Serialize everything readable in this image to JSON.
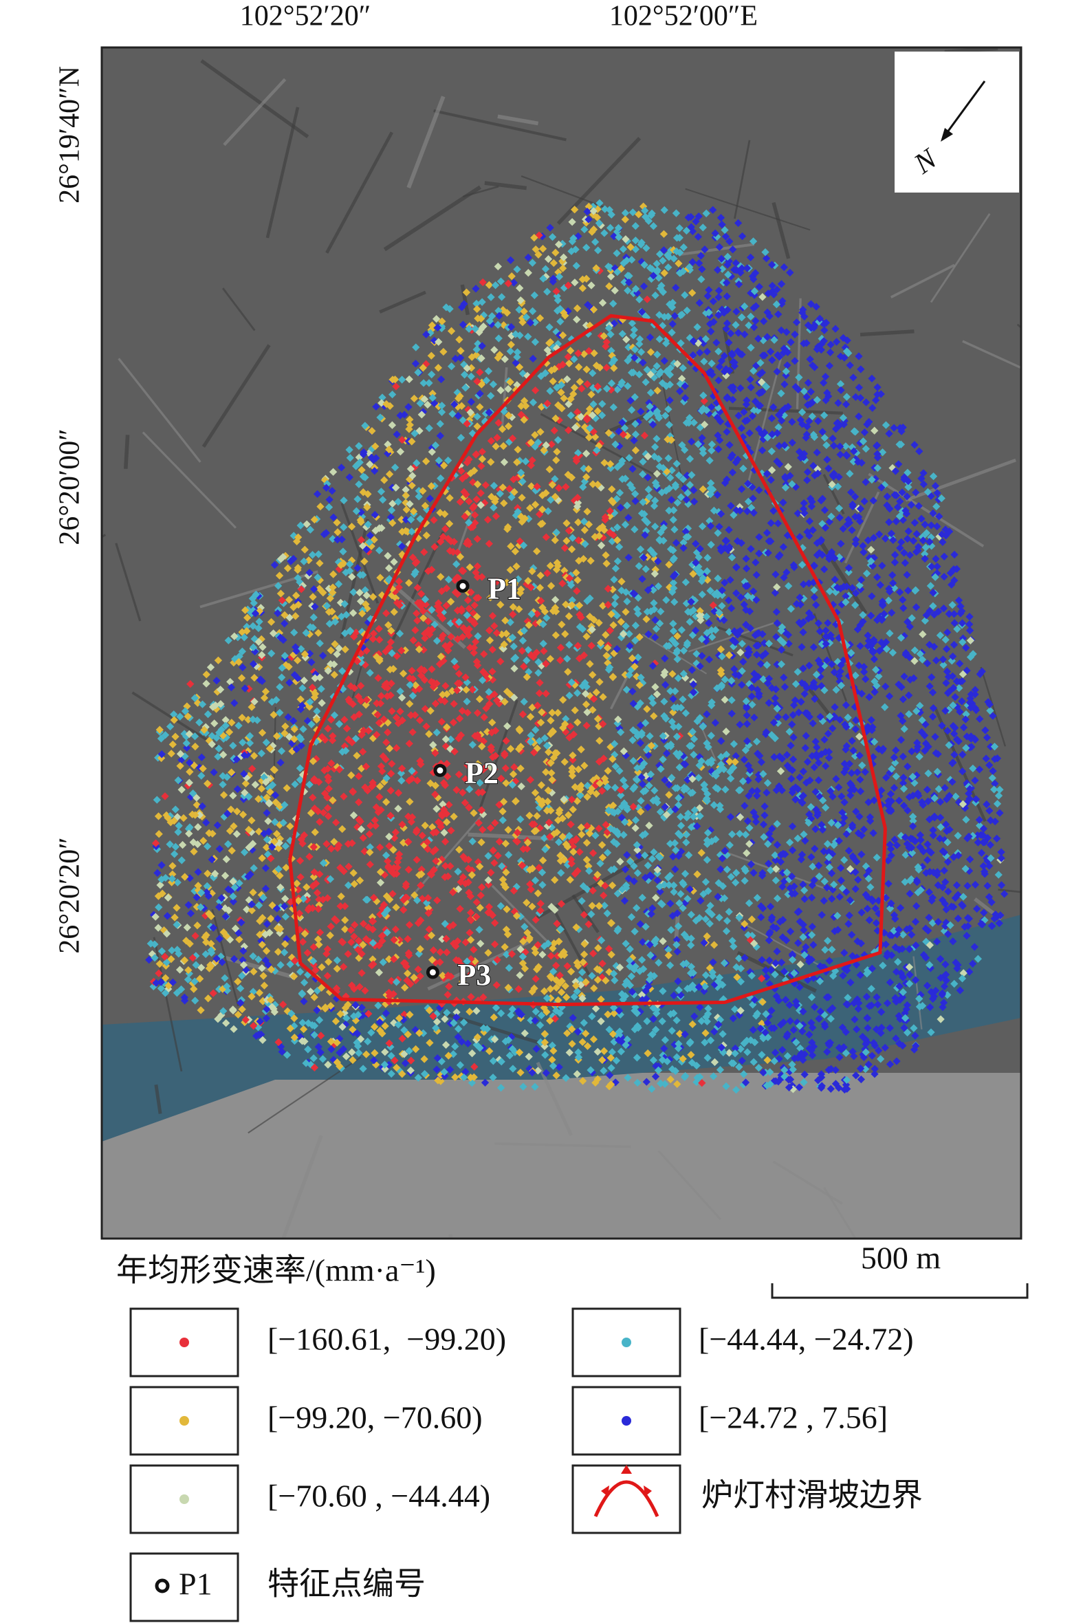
{
  "map": {
    "coordinates": {
      "top": [
        "102°52′20″",
        "102°52′00″E"
      ],
      "left": [
        "26°19′40″N",
        "26°20′00″",
        "26°20′20″"
      ]
    },
    "north": "N",
    "points": [
      "P1",
      "P2",
      "P3"
    ],
    "scale_bar": "500 m",
    "legend": {
      "title": "年均形变速率/(mm·a⁻¹)",
      "classes": [
        {
          "label": "[−160.61,  −99.20)",
          "color": "#e8303a"
        },
        {
          "label": "[−99.20, −70.60)",
          "color": "#e2b83a"
        },
        {
          "label": "[−70.60 , −44.44)",
          "color": "#c8d8b0"
        },
        {
          "label": "[−44.44, −24.72)",
          "color": "#48b4c8"
        },
        {
          "label": "[−24.72 , 7.56]",
          "color": "#2a2ad8"
        }
      ],
      "boundary": "炉灯村滑坡边界",
      "point_id": {
        "symbol": "P1",
        "label": "特征点编号"
      }
    }
  }
}
